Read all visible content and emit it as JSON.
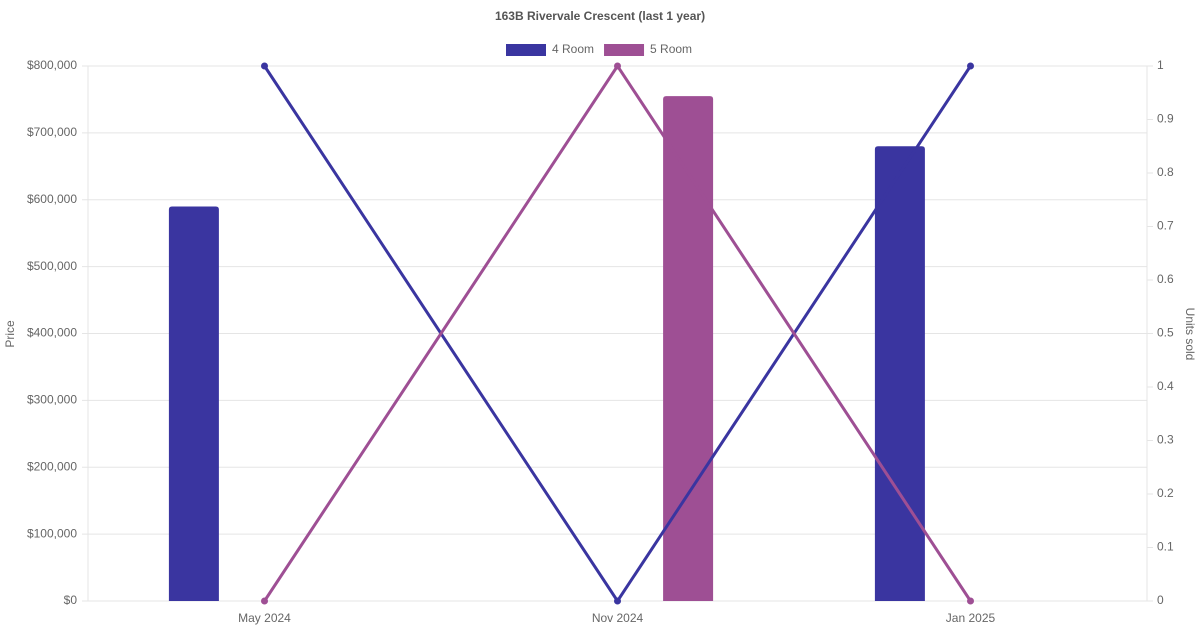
{
  "chart_data": {
    "type": "bar-line",
    "title": "163B Rivervale Crescent (last 1 year)",
    "categories": [
      "May 2024",
      "Nov 2024",
      "Jan 2025"
    ],
    "series": [
      {
        "name": "4 Room",
        "color": "#3a35a0",
        "values": [
          590000,
          null,
          680000
        ],
        "units": [
          1,
          0,
          1
        ]
      },
      {
        "name": "5 Room",
        "color": "#9e4f94",
        "values": [
          null,
          755000,
          null
        ],
        "units": [
          0,
          1,
          0
        ]
      }
    ],
    "y_label": "Price",
    "y2_label": "Units sold",
    "ylim": [
      0,
      800000
    ],
    "yticks": [
      {
        "value": 0,
        "label": "$0"
      },
      {
        "value": 100000,
        "label": "$100,000"
      },
      {
        "value": 200000,
        "label": "$200,000"
      },
      {
        "value": 300000,
        "label": "$300,000"
      },
      {
        "value": 400000,
        "label": "$400,000"
      },
      {
        "value": 500000,
        "label": "$500,000"
      },
      {
        "value": 600000,
        "label": "$600,000"
      },
      {
        "value": 700000,
        "label": "$700,000"
      },
      {
        "value": 800000,
        "label": "$800,000"
      }
    ],
    "y2lim": [
      0,
      1
    ],
    "y2ticks": [
      0,
      0.1,
      0.2,
      0.3,
      0.4,
      0.5,
      0.6,
      0.7,
      0.8,
      0.9,
      1
    ],
    "grid": true
  }
}
